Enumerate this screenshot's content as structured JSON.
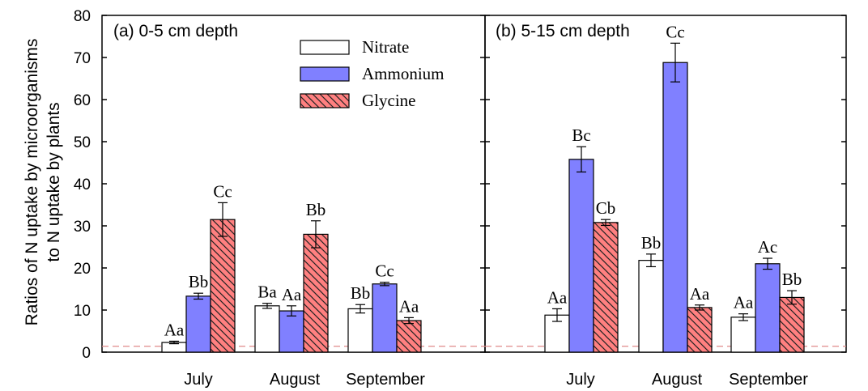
{
  "chart_data": {
    "type": "bar",
    "ylabel_lines": [
      "Ratios of N uptake by microorganisms",
      "to N uptake by plants"
    ],
    "ylim": [
      0,
      80
    ],
    "yticks": [
      "0",
      "10",
      "20",
      "30",
      "40",
      "50",
      "60",
      "70",
      "80"
    ],
    "categories": [
      "July",
      "August",
      "September"
    ],
    "reference_line": {
      "y": 1.4,
      "style": "dashed",
      "color": "#e08a8a"
    },
    "legend": {
      "position": "top-center of panel (a)",
      "items": [
        {
          "name": "Nitrate",
          "fill": "#ffffff",
          "pattern": "none"
        },
        {
          "name": "Ammonium",
          "fill": "#8080ff",
          "pattern": "none"
        },
        {
          "name": "Glycine",
          "fill": "#ff8080",
          "pattern": "hatch"
        }
      ]
    },
    "panels": [
      {
        "title": "(a) 0-5 cm depth",
        "series": [
          {
            "name": "Nitrate",
            "values": [
              2.3,
              11.0,
              10.3
            ],
            "errors": [
              0.3,
              0.6,
              1.0
            ],
            "labels": [
              "Aa",
              "Ba",
              "Bb"
            ]
          },
          {
            "name": "Ammonium",
            "values": [
              13.3,
              9.8,
              16.2
            ],
            "errors": [
              0.7,
              1.2,
              0.4
            ],
            "labels": [
              "Bb",
              "Aa",
              "Cc"
            ]
          },
          {
            "name": "Glycine",
            "values": [
              31.5,
              28.0,
              7.5
            ],
            "errors": [
              4.0,
              3.2,
              0.7
            ],
            "labels": [
              "Cc",
              "Bb",
              "Aa"
            ]
          }
        ]
      },
      {
        "title": "(b) 5-15 cm depth",
        "series": [
          {
            "name": "Nitrate",
            "values": [
              8.8,
              21.8,
              8.3
            ],
            "errors": [
              1.5,
              1.5,
              0.8
            ],
            "labels": [
              "Aa",
              "Bb",
              "Aa"
            ]
          },
          {
            "name": "Ammonium",
            "values": [
              45.8,
              68.8,
              21.0
            ],
            "errors": [
              3.0,
              4.6,
              1.3
            ],
            "labels": [
              "Bc",
              "Cc",
              "Ac"
            ]
          },
          {
            "name": "Glycine",
            "values": [
              30.8,
              10.6,
              13.0
            ],
            "errors": [
              0.7,
              0.6,
              1.6
            ],
            "labels": [
              "Cb",
              "Aa",
              "Bb"
            ]
          }
        ]
      }
    ]
  }
}
